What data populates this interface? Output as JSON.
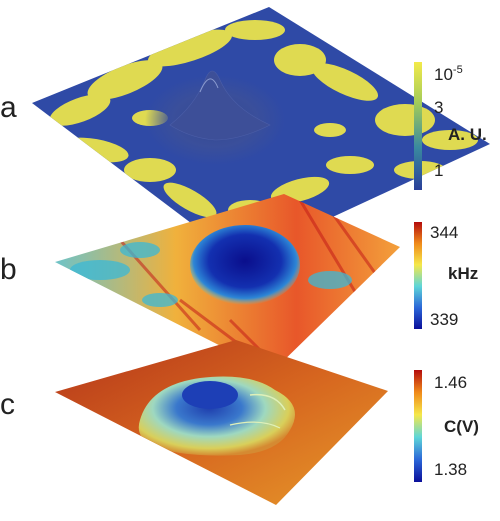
{
  "panels": [
    {
      "label": "a",
      "colorbar": {
        "ticks": [
          "10",
          "3",
          "1"
        ],
        "top_exponent": "-5",
        "unit": "A. U.",
        "stops": [
          "#f3ea4a",
          "#9fca5a",
          "#3a8a9f",
          "#2a3f9a"
        ]
      }
    },
    {
      "label": "b",
      "colorbar": {
        "ticks": [
          "344",
          "339"
        ],
        "unit": "kHz",
        "stops": [
          "#b40c0c",
          "#f08a1a",
          "#f5e84a",
          "#5ed6d8",
          "#2b67d8",
          "#0b0f9a"
        ]
      }
    },
    {
      "label": "c",
      "colorbar": {
        "ticks": [
          "1.46",
          "1.38"
        ],
        "unit": "C(V)",
        "stops": [
          "#b40c0c",
          "#f08a1a",
          "#f5e84a",
          "#5ed6d8",
          "#2b67d8",
          "#0b0f9a"
        ]
      }
    }
  ],
  "colors": {
    "surface_a_base": "#2f4aa6",
    "surface_a_patch": "#e9e24c",
    "surface_b_base": "#f1a63a",
    "surface_b_cool": "#36b9d3",
    "surface_b_hot": "#c31c18",
    "surface_c_base": "#c7521d",
    "surface_c_mound": "#9fd7b6",
    "surface_c_core": "#1d3fb6"
  }
}
